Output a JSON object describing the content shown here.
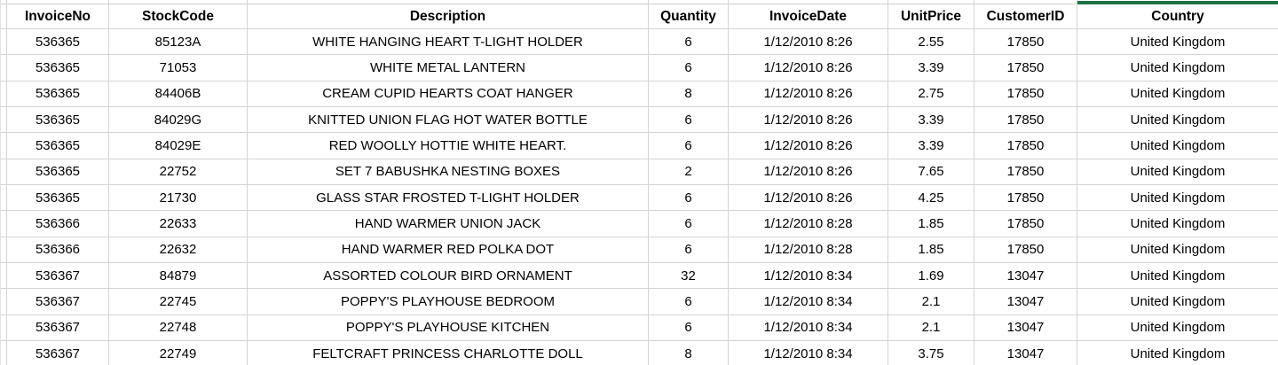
{
  "app": {
    "view": "spreadsheet-grid",
    "selected_column": "Country"
  },
  "colors": {
    "selection_accent_green": "#1E7145",
    "gridline": "#D4D4D4",
    "text": "#000000",
    "background": "#FFFFFF"
  },
  "table": {
    "columns": [
      "InvoiceNo",
      "StockCode",
      "Description",
      "Quantity",
      "InvoiceDate",
      "UnitPrice",
      "CustomerID",
      "Country"
    ],
    "rows": [
      [
        "536365",
        "85123A",
        "WHITE HANGING HEART T-LIGHT HOLDER",
        "6",
        "1/12/2010 8:26",
        "2.55",
        "17850",
        "United Kingdom"
      ],
      [
        "536365",
        "71053",
        "WHITE METAL LANTERN",
        "6",
        "1/12/2010 8:26",
        "3.39",
        "17850",
        "United Kingdom"
      ],
      [
        "536365",
        "84406B",
        "CREAM CUPID HEARTS COAT HANGER",
        "8",
        "1/12/2010 8:26",
        "2.75",
        "17850",
        "United Kingdom"
      ],
      [
        "536365",
        "84029G",
        "KNITTED UNION FLAG HOT WATER BOTTLE",
        "6",
        "1/12/2010 8:26",
        "3.39",
        "17850",
        "United Kingdom"
      ],
      [
        "536365",
        "84029E",
        "RED WOOLLY HOTTIE WHITE HEART.",
        "6",
        "1/12/2010 8:26",
        "3.39",
        "17850",
        "United Kingdom"
      ],
      [
        "536365",
        "22752",
        "SET 7 BABUSHKA NESTING BOXES",
        "2",
        "1/12/2010 8:26",
        "7.65",
        "17850",
        "United Kingdom"
      ],
      [
        "536365",
        "21730",
        "GLASS STAR FROSTED T-LIGHT HOLDER",
        "6",
        "1/12/2010 8:26",
        "4.25",
        "17850",
        "United Kingdom"
      ],
      [
        "536366",
        "22633",
        "HAND WARMER UNION JACK",
        "6",
        "1/12/2010 8:28",
        "1.85",
        "17850",
        "United Kingdom"
      ],
      [
        "536366",
        "22632",
        "HAND WARMER RED POLKA DOT",
        "6",
        "1/12/2010 8:28",
        "1.85",
        "17850",
        "United Kingdom"
      ],
      [
        "536367",
        "84879",
        "ASSORTED COLOUR BIRD ORNAMENT",
        "32",
        "1/12/2010 8:34",
        "1.69",
        "13047",
        "United Kingdom"
      ],
      [
        "536367",
        "22745",
        "POPPY'S PLAYHOUSE BEDROOM",
        "6",
        "1/12/2010 8:34",
        "2.1",
        "13047",
        "United Kingdom"
      ],
      [
        "536367",
        "22748",
        "POPPY'S PLAYHOUSE KITCHEN",
        "6",
        "1/12/2010 8:34",
        "2.1",
        "13047",
        "United Kingdom"
      ],
      [
        "536367",
        "22749",
        "FELTCRAFT PRINCESS CHARLOTTE DOLL",
        "8",
        "1/12/2010 8:34",
        "3.75",
        "13047",
        "United Kingdom"
      ]
    ]
  }
}
